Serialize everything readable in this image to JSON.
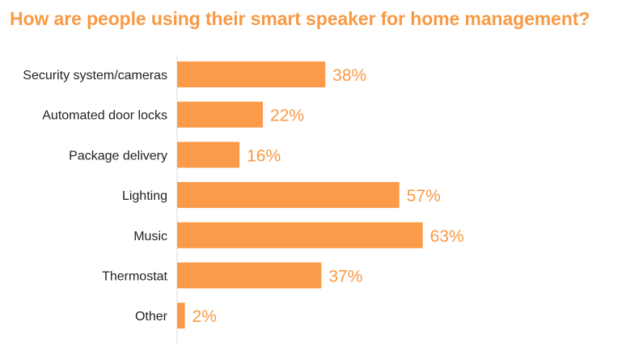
{
  "chart_data": {
    "type": "bar",
    "orientation": "horizontal",
    "title": "How are people using their smart speaker for home management?",
    "xlabel": "",
    "ylabel": "",
    "categories": [
      "Security system/cameras",
      "Automated door locks",
      "Package delivery",
      "Lighting",
      "Music",
      "Thermostat",
      "Other"
    ],
    "values": [
      38,
      22,
      16,
      57,
      63,
      37,
      2
    ],
    "value_labels": [
      "38%",
      "22%",
      "16%",
      "57%",
      "63%",
      "37%",
      "2%"
    ],
    "unit": "%",
    "xlim": [
      0,
      100
    ],
    "grid": false,
    "legend": "none",
    "bar_color": "#fb9a48",
    "label_color": "#f89a45"
  }
}
